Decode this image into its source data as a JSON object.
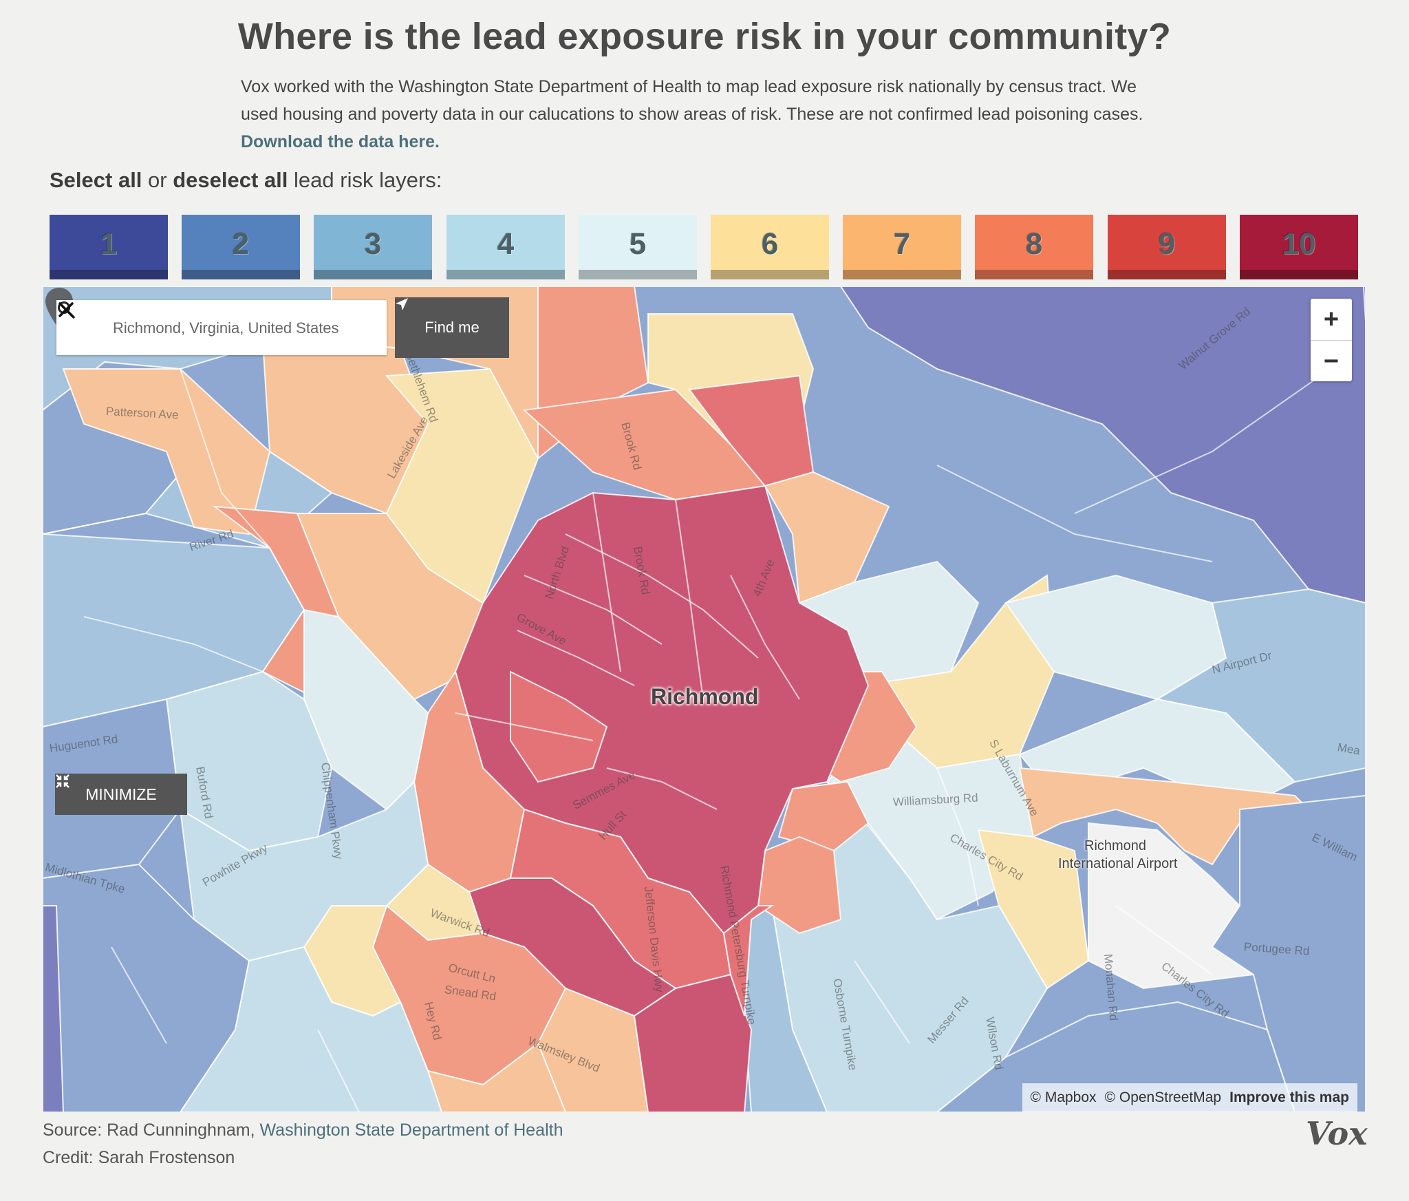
{
  "header": {
    "title": "Where is the lead exposure risk in your community?",
    "intro": "Vox worked with the Washington State Department of Health to map lead exposure risk nationally by census tract. We used housing and poverty data in our calucations to show areas of risk. These are not confirmed lead poisoning cases.",
    "download_link": "Download the data here."
  },
  "layer_select": {
    "select_all": "Select all",
    "or": "or",
    "deselect_all": "deselect all",
    "suffix": "lead risk layers:"
  },
  "layers": [
    {
      "label": "1",
      "color": "#3d4a9a"
    },
    {
      "label": "2",
      "color": "#5581bd"
    },
    {
      "label": "3",
      "color": "#80b5d6"
    },
    {
      "label": "4",
      "color": "#b3dbea"
    },
    {
      "label": "5",
      "color": "#e1f2f6"
    },
    {
      "label": "6",
      "color": "#fde09a"
    },
    {
      "label": "7",
      "color": "#fcb56e"
    },
    {
      "label": "8",
      "color": "#f47d58"
    },
    {
      "label": "9",
      "color": "#d9433d"
    },
    {
      "label": "10",
      "color": "#a51b39"
    }
  ],
  "map": {
    "search_value": "Richmond, Virginia, United States",
    "find_me": "Find me",
    "zoom_in": "+",
    "zoom_out": "−",
    "minimize": "MINIMIZE",
    "city": "Richmond",
    "airport_line1": "Richmond",
    "airport_line2": "International Airport",
    "roads": {
      "patterson": "Patterson Ave",
      "river": "River Rd",
      "grove": "Grove Ave",
      "north": "North Blvd",
      "brook1": "Brook Rd",
      "brook2": "Brook Rd",
      "fourth": "4th Ave",
      "lakeside": "Lakeside Ave",
      "bethlehem": "Bethlehem Rd",
      "walnut": "Walnut Grove Rd",
      "airport_dr": "N Airport Dr",
      "laburnum": "S Laburnum Ave",
      "williamsburg": "Williamsburg Rd",
      "charles1": "Charles City Rd",
      "charles2": "Charles City Rd",
      "semmes": "Semmes Ave",
      "hull": "Hull St",
      "jeff": "Jefferson Davis Hwy",
      "petersburg": "Richmond Petersburg Turnpike",
      "buford": "Buford Rd",
      "chippenham": "Chippenham Pkwy",
      "powhite": "Powhite Pkwy",
      "midlothian": "Midlothian Tpke",
      "warwick": "Warwick Rd",
      "orcutt": "Orcutt Ln",
      "snead": "Snead Rd",
      "hey": "Hey Rd",
      "walmsley": "Walmsley Blvd",
      "osborne": "Osborne Turnpike",
      "messer": "Messer Rd",
      "wilson": "Wilson Rd",
      "monahan": "Monahan Rd",
      "portugee": "Portugee Rd",
      "ewilliam": "E William",
      "huguenot": "Huguenot Rd",
      "mea": "Mea"
    },
    "attribution": {
      "mapbox": "© Mapbox",
      "osm": "© OpenStreetMap",
      "improve": "Improve this map"
    }
  },
  "footer": {
    "source_label": "Source:",
    "source_person": "Rad Cunninghnam,",
    "source_org": "Washington State Department of Health",
    "credit_label": "Credit:",
    "credit_person": "Sarah Frostenson",
    "logo": "Vox"
  }
}
